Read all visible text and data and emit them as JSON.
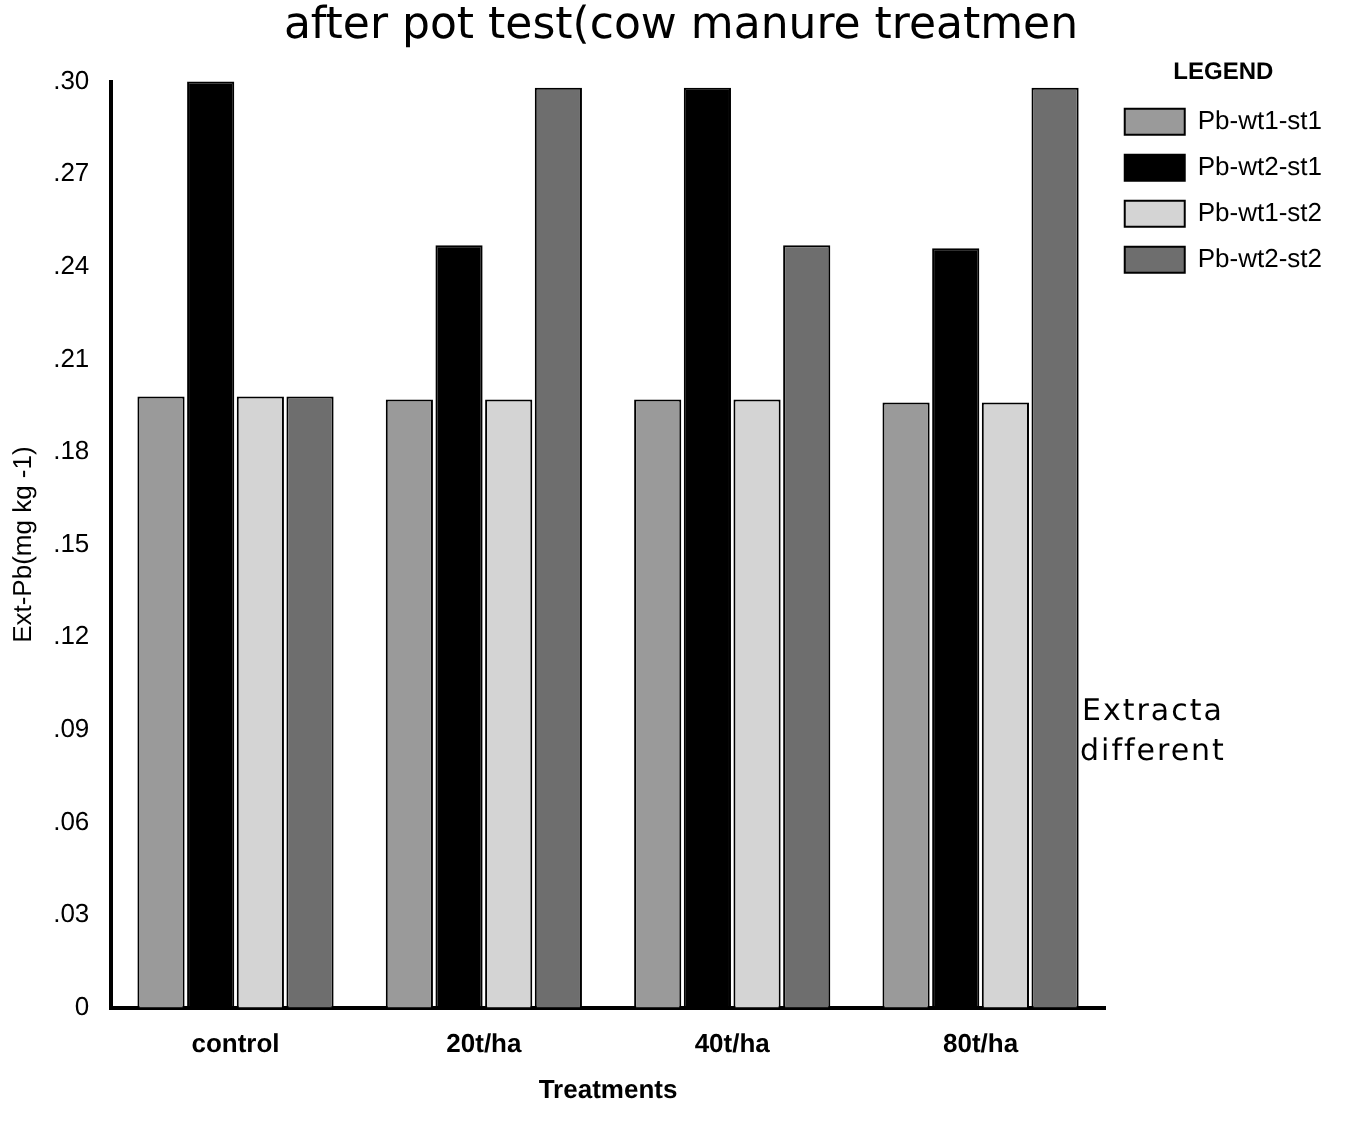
{
  "chart_data": {
    "type": "bar",
    "title": "after pot test(cow manure treatmen",
    "xlabel": "Treatments",
    "ylabel": "Ext-Pb(mg kg -1)",
    "legend_title": "LEGEND",
    "categories": [
      "control",
      "20t/ha",
      "40t/ha",
      "80t/ha"
    ],
    "series": [
      {
        "name": "Pb-wt1-st1",
        "color": "#9a9a9a",
        "values": [
          0.198,
          0.197,
          0.197,
          0.196
        ]
      },
      {
        "name": "Pb-wt2-st1",
        "color": "#000000",
        "values": [
          0.3,
          0.247,
          0.298,
          0.246
        ]
      },
      {
        "name": "Pb-wt1-st2",
        "color": "#d4d4d4",
        "values": [
          0.198,
          0.197,
          0.197,
          0.196
        ]
      },
      {
        "name": "Pb-wt2-st2",
        "color": "#6e6e6e",
        "values": [
          0.198,
          0.298,
          0.247,
          0.298
        ]
      }
    ],
    "ylim": [
      0,
      0.3
    ],
    "yticks": [
      {
        "value": 0,
        "label": "0"
      },
      {
        "value": 0.03,
        "label": ".03"
      },
      {
        "value": 0.06,
        "label": ".06"
      },
      {
        "value": 0.09,
        "label": ".09"
      },
      {
        "value": 0.12,
        "label": ".12"
      },
      {
        "value": 0.15,
        "label": ".15"
      },
      {
        "value": 0.18,
        "label": ".18"
      },
      {
        "value": 0.21,
        "label": ".21"
      },
      {
        "value": 0.24,
        "label": ".24"
      },
      {
        "value": 0.27,
        "label": ".27"
      },
      {
        "value": 0.3,
        "label": ".30"
      }
    ],
    "grid": false,
    "legend": "top right",
    "annotations": [
      "Extracta",
      "different"
    ]
  }
}
